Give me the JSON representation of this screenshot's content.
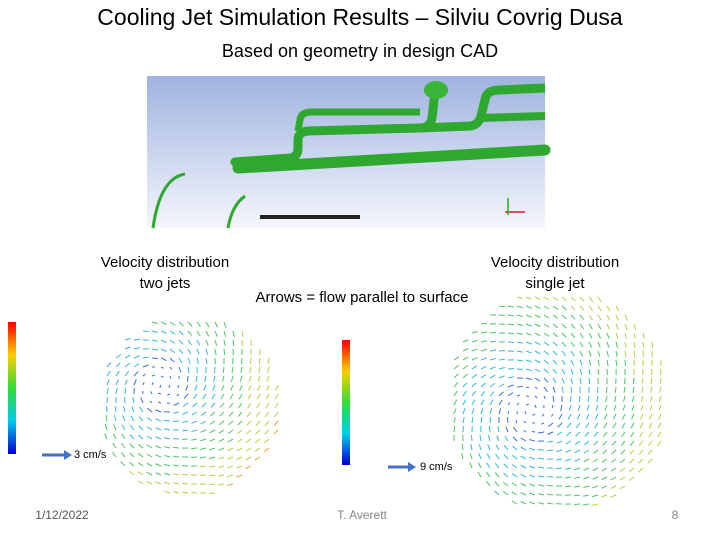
{
  "header": {
    "title": "Cooling Jet Simulation Results – Silviu Covrig Dusa",
    "subtitle": "Based on geometry in design CAD"
  },
  "panels": {
    "left": {
      "label_line1": "Velocity distribution",
      "label_line2": "two jets",
      "scale": "3 cm/s"
    },
    "middle": {
      "label": "Arrows = flow parallel to surface",
      "scale": "9 cm/s"
    },
    "right": {
      "label_line1": "Velocity distribution",
      "label_line2": "single jet"
    }
  },
  "footer": {
    "date": "1/12/2022",
    "author": "T. Averett",
    "page": "8"
  }
}
